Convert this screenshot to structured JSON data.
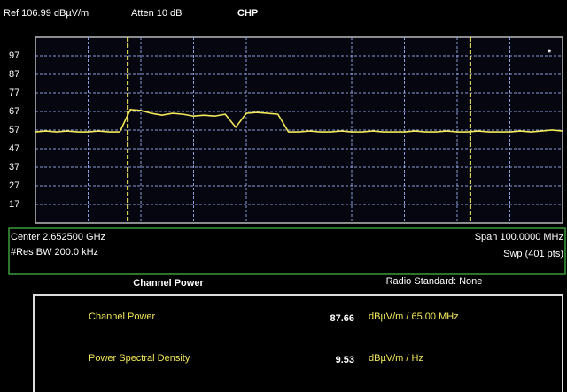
{
  "header": {
    "ref": "Ref 106.99 dBµV/m",
    "atten": "Atten 10 dB",
    "mode": "CHP"
  },
  "chart_data": {
    "type": "line",
    "annotation": "*",
    "x": [
      2.6025,
      2.6045,
      2.6065,
      2.6085,
      2.6105,
      2.6125,
      2.6145,
      2.6165,
      2.6185,
      2.6205,
      2.6225,
      2.6245,
      2.6265,
      2.6285,
      2.6305,
      2.6325,
      2.6345,
      2.6365,
      2.6385,
      2.6405,
      2.6425,
      2.6445,
      2.6465,
      2.6485,
      2.6505,
      2.6525,
      2.6545,
      2.6565,
      2.6585,
      2.6605,
      2.6625,
      2.6645,
      2.6665,
      2.6685,
      2.6705,
      2.6725,
      2.6745,
      2.6765,
      2.6785,
      2.6805,
      2.6825,
      2.6845,
      2.6865,
      2.6885,
      2.6905,
      2.6925,
      2.6945,
      2.6965,
      2.6985,
      2.7005,
      2.7025
    ],
    "series": [
      {
        "color": "#f2e85a",
        "values": [
          56,
          56.5,
          56,
          56.5,
          56,
          56,
          56.5,
          56,
          56,
          68,
          67.5,
          66,
          65,
          66,
          65.5,
          64.5,
          65,
          64.5,
          65.5,
          58.5,
          66,
          66.5,
          66,
          65.5,
          56,
          56,
          56.5,
          56,
          56,
          56.5,
          56,
          56,
          56.5,
          56,
          56,
          56,
          56.5,
          56,
          56,
          56.5,
          56,
          56,
          56.5,
          56,
          56,
          56,
          56.5,
          56,
          56.5,
          57,
          56.5
        ]
      }
    ],
    "channel_lines": [
      2.62,
      2.685
    ],
    "channel_line_color": "#f2e85a",
    "xlim": [
      2.6025,
      2.7025
    ],
    "ylim": [
      6.99,
      106.99
    ],
    "yticks": [
      97,
      87,
      77,
      67,
      57,
      47,
      37,
      27,
      17
    ],
    "grid": true
  },
  "footer": {
    "center": "Center 2.652500 GHz",
    "span": "Span 100.0000 MHz",
    "rbw": "#Res BW 200.0 kHz",
    "sweep": "Swp (401 pts)"
  },
  "results": {
    "title": "Channel Power",
    "standard": "Radio Standard: None",
    "rows": [
      {
        "label": "Channel Power",
        "value": "87.66",
        "unit": "dBµV/m / 65.00 MHz"
      },
      {
        "label": "Power Spectral Density",
        "value": "9.53",
        "unit": "dBµV/m / Hz"
      }
    ]
  }
}
